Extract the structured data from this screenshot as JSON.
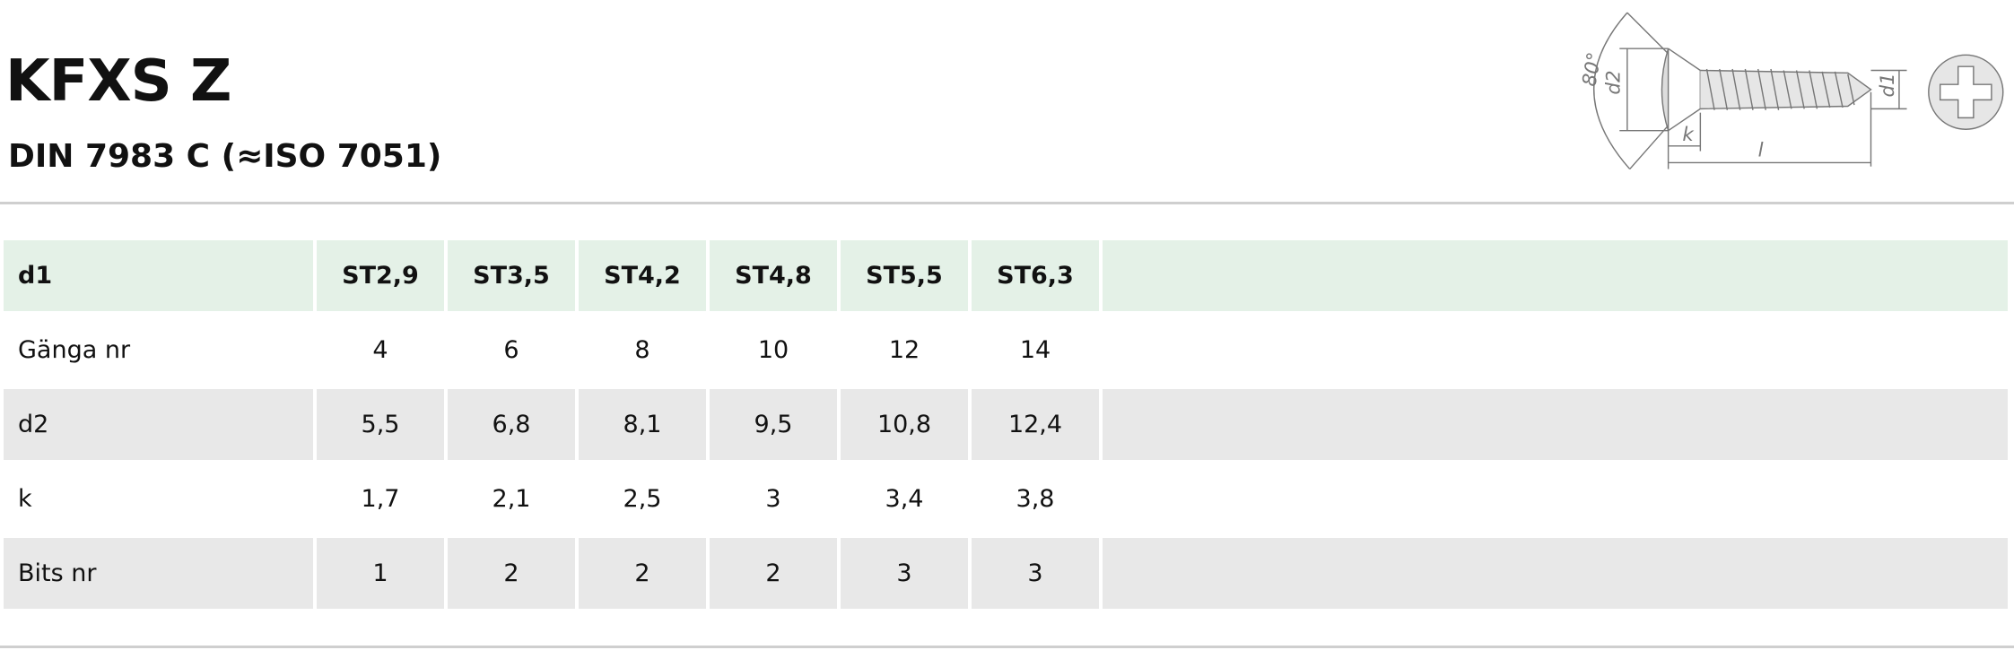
{
  "header": {
    "title": "KFXS Z",
    "subtitle": "DIN 7983 C (≈ISO 7051)"
  },
  "diagram": {
    "labels": [
      "80°",
      "d2",
      "k",
      "l",
      "d1"
    ]
  },
  "table": {
    "rows": [
      [
        "d1",
        "ST2,9",
        "ST3,5",
        "ST4,2",
        "ST4,8",
        "ST5,5",
        "ST6,3"
      ],
      [
        "Gänga nr",
        "4",
        "6",
        "8",
        "10",
        "12",
        "14"
      ],
      [
        "d2",
        "5,5",
        "6,8",
        "8,1",
        "9,5",
        "10,8",
        "12,4"
      ],
      [
        "k",
        "1,7",
        "2,1",
        "2,5",
        "3",
        "3,4",
        "3,8"
      ],
      [
        "Bits nr",
        "1",
        "2",
        "2",
        "2",
        "3",
        "3"
      ]
    ]
  }
}
